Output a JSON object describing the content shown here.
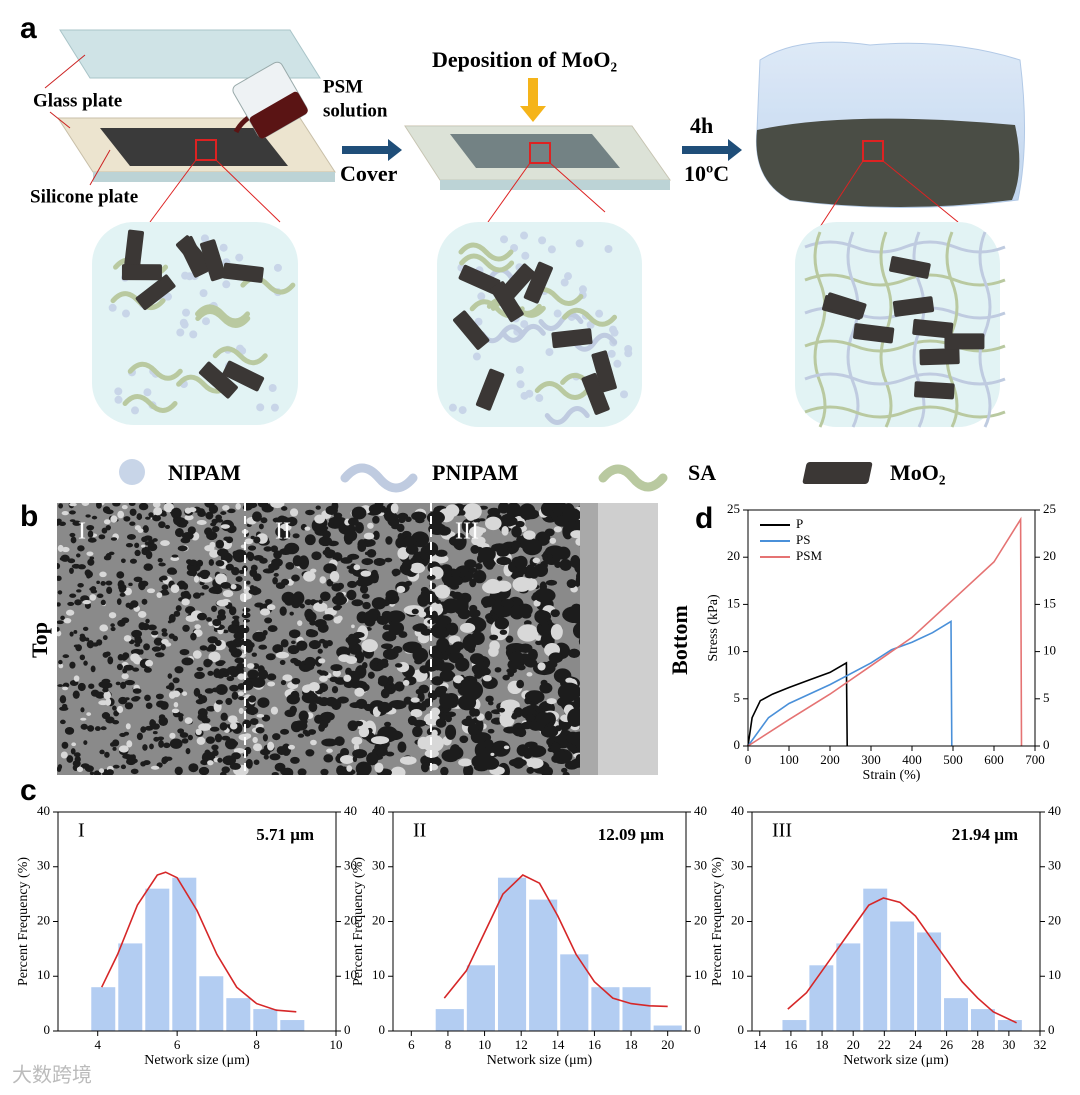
{
  "panel_labels": [
    "a",
    "b",
    "c",
    "d"
  ],
  "diagram": {
    "glass_plate": "Glass plate",
    "psm_solution": [
      "PSM",
      "solution"
    ],
    "silicone_plate": "Silicone plate",
    "cover": "Cover",
    "deposition": "Deposition of MoO₂",
    "time": "4h",
    "temperature": "10ºC"
  },
  "legend": [
    "NIPAM",
    "PNIPAM",
    "SA",
    "MoO₂"
  ],
  "sem": {
    "regions": [
      "I",
      "II",
      "III"
    ],
    "top": "Top",
    "bottom": "Bottom"
  },
  "watermark": "大数跨境",
  "chart_data": [
    {
      "type": "line",
      "xlabel": "Strain (%)",
      "ylabel": "Stress (kPa)",
      "xlim": [
        0,
        700
      ],
      "xticks": [
        0,
        100,
        200,
        300,
        400,
        500,
        600,
        700
      ],
      "ylim": [
        0,
        25
      ],
      "yticks": [
        0,
        5,
        10,
        15,
        20,
        25
      ],
      "y2lim": [
        0,
        25
      ],
      "y2ticks": [
        0,
        5,
        10,
        15,
        20,
        25
      ],
      "legend": "upper left",
      "series": [
        {
          "name": "P",
          "color": "#000000",
          "x": [
            0,
            10,
            30,
            60,
            100,
            150,
            200,
            240,
            242
          ],
          "values": [
            0,
            3,
            4.8,
            5.5,
            6.2,
            7,
            7.8,
            8.8,
            0
          ]
        },
        {
          "name": "PS",
          "color": "#4a90d9",
          "x": [
            0,
            50,
            100,
            200,
            300,
            350,
            400,
            450,
            495,
            497
          ],
          "values": [
            0,
            3,
            4.5,
            6.5,
            8.8,
            10.2,
            11,
            12,
            13.2,
            0
          ]
        },
        {
          "name": "PSM",
          "color": "#e57373",
          "x": [
            0,
            100,
            200,
            300,
            400,
            500,
            600,
            665,
            667
          ],
          "values": [
            0,
            2.8,
            5.5,
            8.5,
            11.5,
            15.5,
            19.5,
            24,
            0
          ]
        }
      ]
    },
    {
      "type": "histogram",
      "label": "I",
      "annotation": "5.71 μm",
      "xlabel": "Network size (μm)",
      "ylabel": "Percent Frequency (%)",
      "xlim": [
        3,
        10
      ],
      "xticks": [
        4,
        6,
        8,
        10
      ],
      "ylim": [
        0,
        40
      ],
      "yticks": [
        0,
        10,
        20,
        30,
        40
      ],
      "y2lim": [
        0,
        40
      ],
      "y2ticks": [
        0,
        10,
        20,
        30,
        40
      ],
      "bins": [
        3.8,
        4.48,
        5.16,
        5.84,
        6.52,
        7.2,
        7.88,
        8.56,
        9.24
      ],
      "values": [
        8,
        16,
        26,
        28,
        10,
        6,
        4,
        2
      ],
      "color": "#b3cdf2",
      "fit": {
        "color": "#d62728",
        "x": [
          4.1,
          4.5,
          5,
          5.5,
          5.71,
          6,
          6.5,
          7,
          7.5,
          8,
          8.5,
          9
        ],
        "values": [
          8,
          14,
          23,
          28.5,
          29,
          28,
          22,
          14,
          8,
          5,
          3.8,
          3.5
        ]
      }
    },
    {
      "type": "histogram",
      "label": "II",
      "annotation": "12.09 μm",
      "xlabel": "Network size (μm)",
      "ylabel": "Percent Frequency (%)",
      "xlim": [
        5,
        21
      ],
      "xticks": [
        6,
        8,
        10,
        12,
        14,
        16,
        18,
        20
      ],
      "ylim": [
        0,
        40
      ],
      "yticks": [
        0,
        10,
        20,
        30,
        40
      ],
      "y2lim": [
        0,
        40
      ],
      "y2ticks": [
        0,
        10,
        20,
        30,
        40
      ],
      "bins": [
        7.25,
        8.95,
        10.65,
        12.35,
        14.05,
        15.75,
        17.45,
        19.15,
        20.85
      ],
      "values": [
        4,
        12,
        28,
        24,
        14,
        8,
        8,
        1
      ],
      "color": "#b3cdf2",
      "fit": {
        "color": "#d62728",
        "x": [
          7.8,
          9,
          10,
          11,
          12.09,
          13,
          14,
          15,
          16,
          17,
          18,
          19,
          20
        ],
        "values": [
          6,
          11,
          18,
          25,
          28.5,
          27,
          21,
          14,
          9,
          6,
          5,
          4.6,
          4.5
        ]
      }
    },
    {
      "type": "histogram",
      "label": "III",
      "annotation": "21.94 μm",
      "xlabel": "Network size (μm)",
      "ylabel": "Percent Frequency (%)",
      "xlim": [
        13.5,
        32
      ],
      "xticks": [
        14,
        16,
        18,
        20,
        22,
        24,
        26,
        28,
        30,
        32
      ],
      "ylim": [
        0,
        40
      ],
      "yticks": [
        0,
        10,
        20,
        30,
        40
      ],
      "y2lim": [
        0,
        40
      ],
      "y2ticks": [
        0,
        10,
        20,
        30,
        40
      ],
      "bins": [
        15.36,
        17.09,
        18.82,
        20.55,
        22.28,
        24.01,
        25.74,
        27.47,
        29.2,
        30.93
      ],
      "values": [
        2,
        12,
        16,
        26,
        20,
        18,
        6,
        4,
        2
      ],
      "color": "#b3cdf2",
      "fit": {
        "color": "#d62728",
        "x": [
          15.8,
          17,
          18,
          19,
          20,
          21,
          21.94,
          23,
          24,
          25,
          26,
          27,
          28,
          29,
          30.5
        ],
        "values": [
          4,
          7,
          11,
          15,
          19,
          23,
          24.3,
          23.5,
          21,
          17,
          13,
          9,
          6,
          3.5,
          1.5
        ]
      }
    }
  ]
}
